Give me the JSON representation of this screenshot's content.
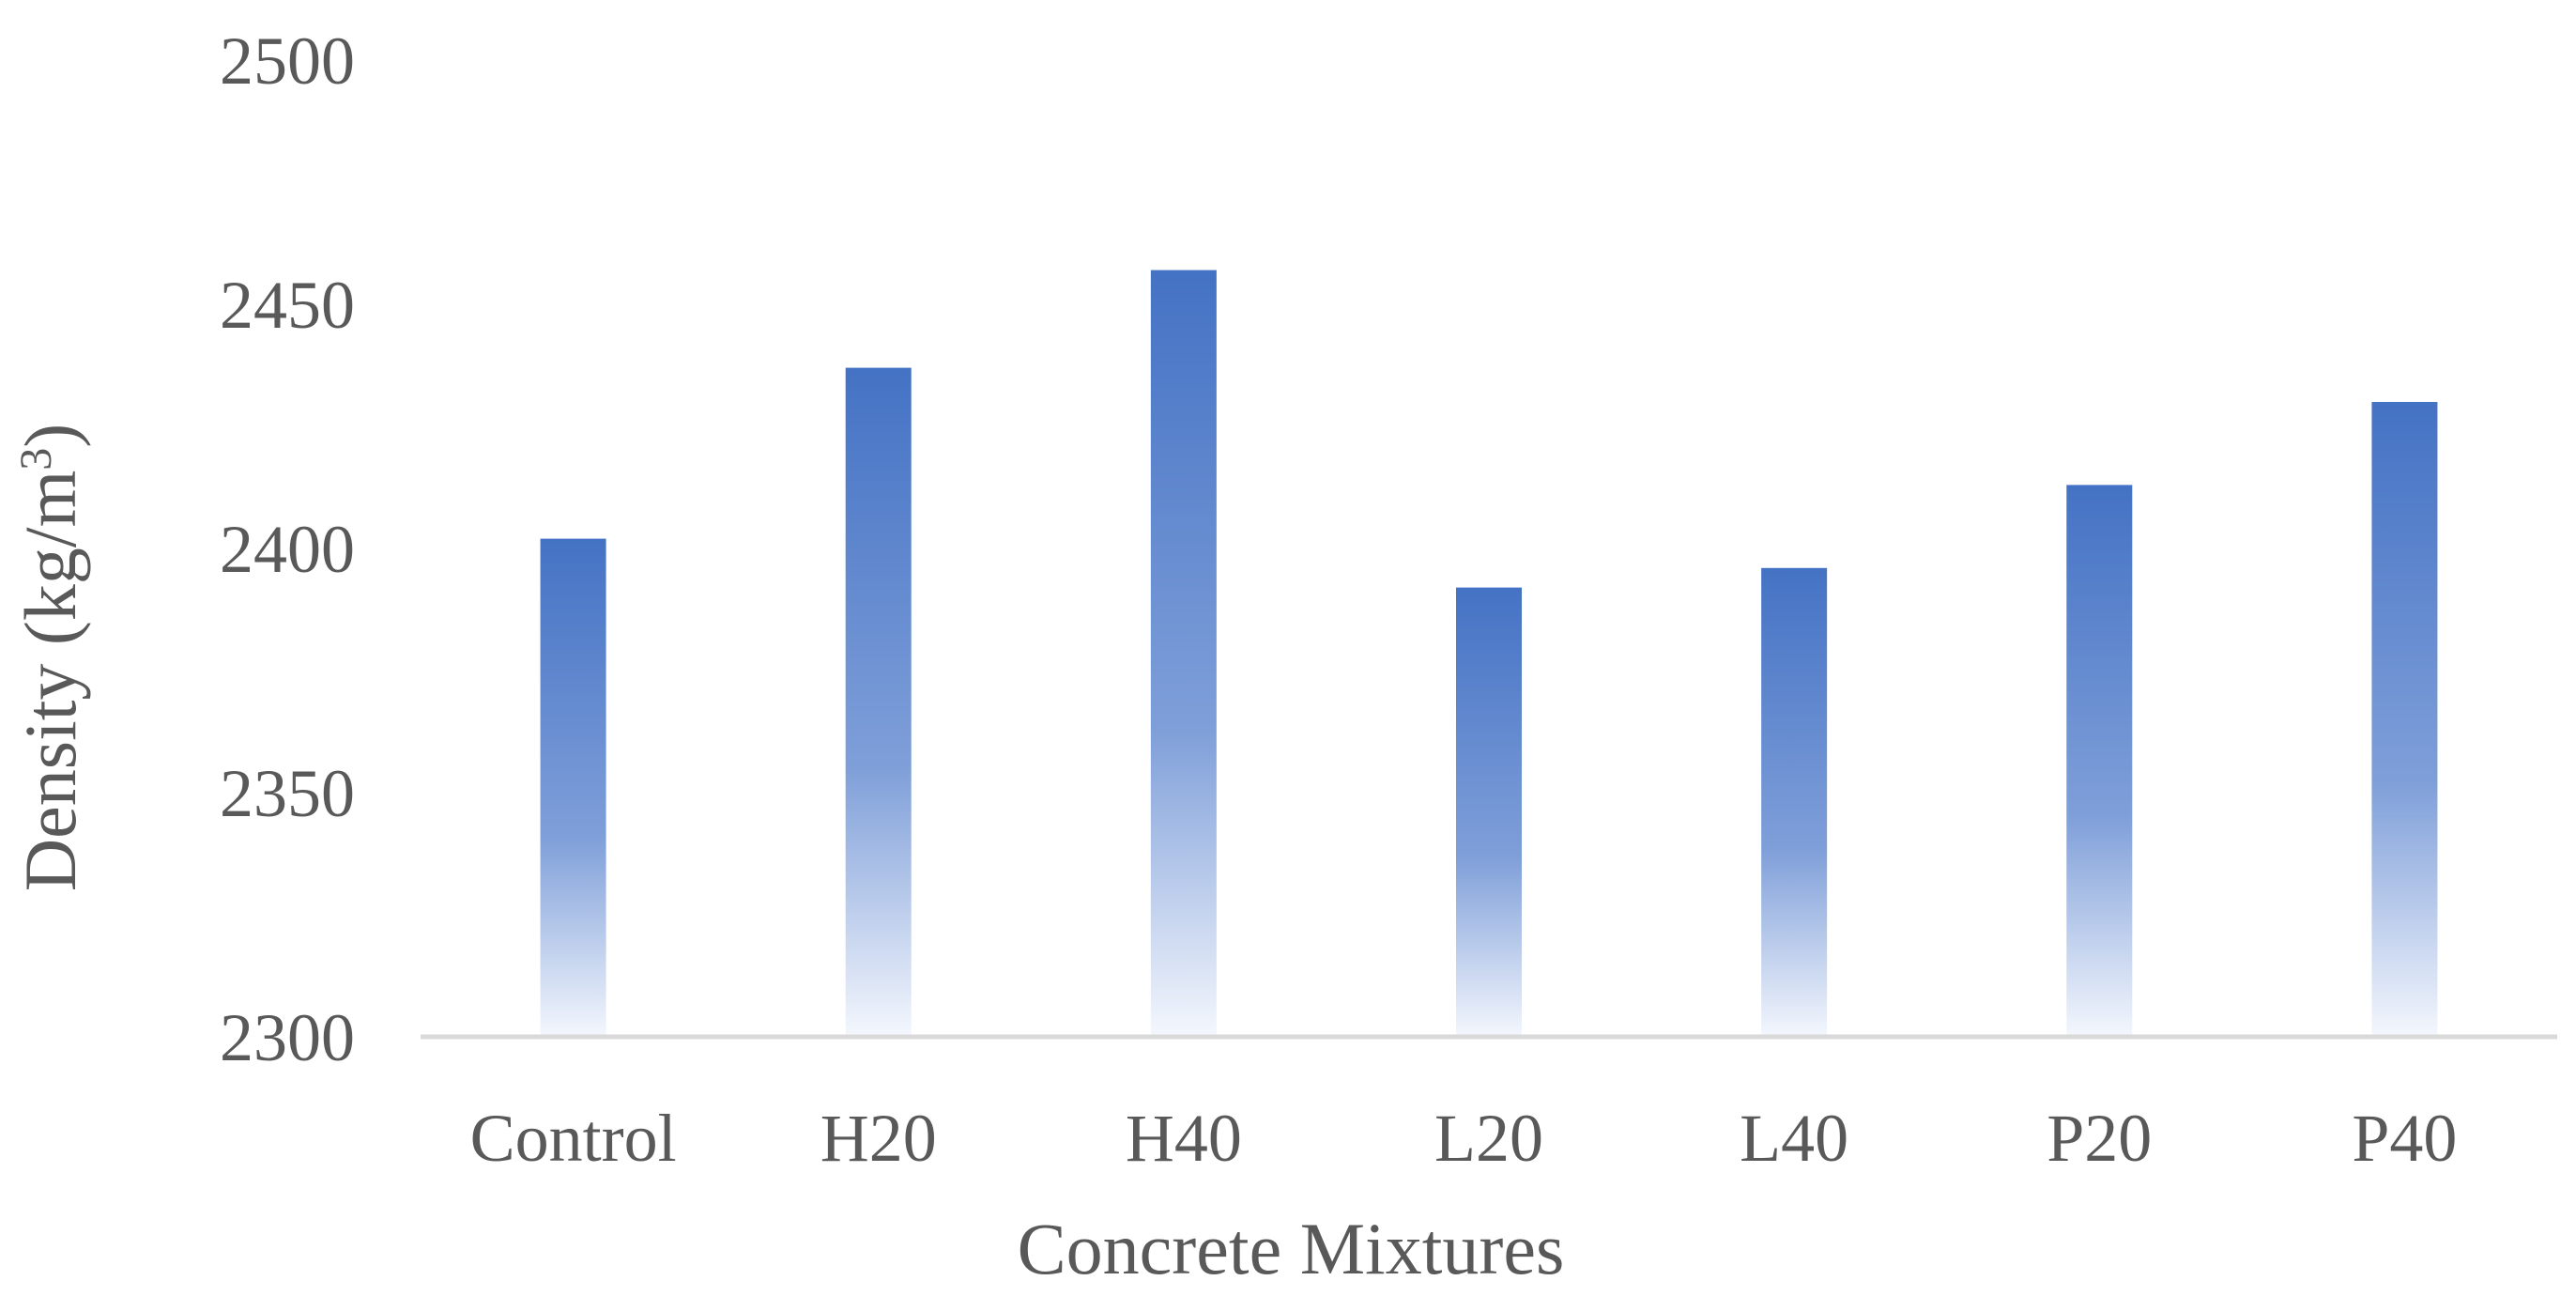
{
  "chart_data": {
    "type": "bar",
    "title": "",
    "xlabel": "Concrete Mixtures",
    "ylabel_main": "Density (kg/m",
    "ylabel_sup": "3",
    "ylabel_close": ")",
    "categories": [
      "Control",
      "H20",
      "H40",
      "L20",
      "L40",
      "P20",
      "P40"
    ],
    "values": [
      2402,
      2437,
      2457,
      2392,
      2396,
      2413,
      2430
    ],
    "ylim": [
      2300,
      2500
    ],
    "yticks": [
      2300,
      2350,
      2400,
      2450,
      2500
    ],
    "grid": false,
    "legend": "none",
    "colors": {
      "bar_top": "#4472c4",
      "bar_mid": "#7f9fd9",
      "bar_bottom": "#f4f7fd",
      "axis_line": "#d9d9d9",
      "text": "#595959"
    }
  }
}
